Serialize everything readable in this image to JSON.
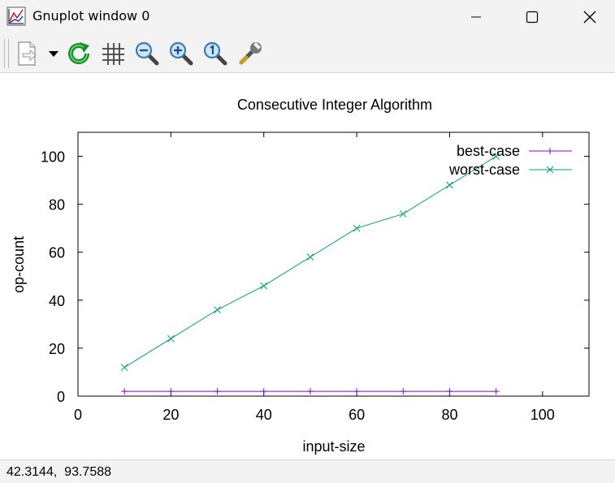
{
  "window": {
    "title": "Gnuplot window 0",
    "icon": "gnuplot-app-icon",
    "controls": [
      "minimize-icon",
      "maximize-icon",
      "close-icon"
    ]
  },
  "toolbar": {
    "items": [
      "export-menu-icon",
      "dropdown-arrow-icon",
      "replot-icon",
      "grid-icon",
      "zoom-out-icon",
      "zoom-in-icon",
      "zoom-reset-icon",
      "options-wrench-icon"
    ]
  },
  "chart_data": {
    "type": "line",
    "title": "Consecutive Integer Algorithm",
    "xlabel": "input-size",
    "ylabel": "op-count",
    "xlim": [
      0,
      110
    ],
    "ylim": [
      0,
      110
    ],
    "x_ticks": [
      "0",
      "20",
      "40",
      "60",
      "80",
      "100"
    ],
    "y_ticks": [
      "0",
      "20",
      "40",
      "60",
      "80",
      "100"
    ],
    "grid": false,
    "legend_position": "top-right",
    "series": [
      {
        "name": "best-case",
        "color": "#9400d3",
        "marker": "plus",
        "x": [
          10,
          20,
          30,
          40,
          50,
          60,
          70,
          80,
          90
        ],
        "values": [
          2,
          2,
          2,
          2,
          2,
          2,
          2,
          2,
          2
        ]
      },
      {
        "name": "worst-case",
        "color": "#009e73",
        "marker": "cross",
        "x": [
          10,
          20,
          30,
          40,
          50,
          60,
          70,
          80,
          90
        ],
        "values": [
          12,
          24,
          36,
          46,
          58,
          70,
          76,
          88,
          100
        ]
      }
    ]
  },
  "status": {
    "coords": "42.3144,  93.7588"
  }
}
